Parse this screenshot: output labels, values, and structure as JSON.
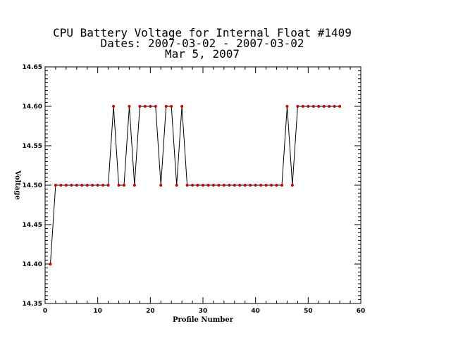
{
  "chart_data": {
    "type": "line",
    "title_lines": [
      "CPU Battery Voltage for Internal Float #1409",
      "Dates:  2007-03-02 -  2007-03-02",
      "Mar  5, 2007"
    ],
    "xlabel": "Profile Number",
    "ylabel": "Voltage",
    "xlim": [
      0,
      60
    ],
    "ylim": [
      14.35,
      14.65
    ],
    "x_ticks": [
      0,
      10,
      20,
      30,
      40,
      50,
      60
    ],
    "y_ticks": [
      14.35,
      14.4,
      14.45,
      14.5,
      14.55,
      14.6,
      14.65
    ],
    "x_tick_labels": [
      "0",
      "10",
      "20",
      "30",
      "40",
      "50",
      "60"
    ],
    "y_tick_labels": [
      "14.35",
      "14.40",
      "14.45",
      "14.50",
      "14.55",
      "14.60",
      "14.65"
    ],
    "grid": false,
    "line_color": "#000000",
    "marker_color": "#cc0000",
    "series": [
      {
        "x": [
          1,
          2,
          3,
          4,
          5,
          6,
          7,
          8,
          9,
          10,
          11,
          12,
          13,
          14,
          15,
          16,
          17,
          18,
          19,
          20,
          21,
          22,
          23,
          24,
          25,
          26,
          27,
          28,
          29,
          30,
          31,
          32,
          33,
          34,
          35,
          36,
          37,
          38,
          39,
          40,
          41,
          42,
          43,
          44,
          45,
          46,
          47,
          48,
          49,
          50,
          51,
          52,
          53,
          54,
          55,
          56
        ],
        "y": [
          14.4,
          14.5,
          14.5,
          14.5,
          14.5,
          14.5,
          14.5,
          14.5,
          14.5,
          14.5,
          14.5,
          14.5,
          14.6,
          14.5,
          14.5,
          14.6,
          14.5,
          14.6,
          14.6,
          14.6,
          14.6,
          14.5,
          14.6,
          14.6,
          14.5,
          14.6,
          14.5,
          14.5,
          14.5,
          14.5,
          14.5,
          14.5,
          14.5,
          14.5,
          14.5,
          14.5,
          14.5,
          14.5,
          14.5,
          14.5,
          14.5,
          14.5,
          14.5,
          14.5,
          14.5,
          14.6,
          14.5,
          14.6,
          14.6,
          14.6,
          14.6,
          14.6,
          14.6,
          14.6,
          14.6,
          14.6
        ]
      }
    ]
  }
}
